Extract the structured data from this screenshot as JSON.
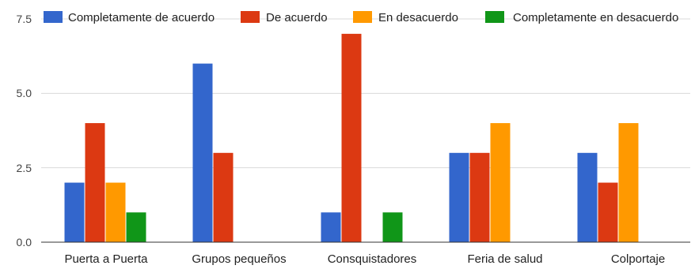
{
  "chart_data": {
    "type": "bar",
    "categories": [
      "Puerta a Puerta",
      "Grupos pequeños",
      "Consquistadores",
      "Feria de salud",
      "Colportaje"
    ],
    "series": [
      {
        "name": "Completamente de acuerdo",
        "color": "#3366cc",
        "values": [
          2,
          6,
          1,
          3,
          3
        ]
      },
      {
        "name": "De acuerdo",
        "color": "#dc3912",
        "values": [
          4,
          3,
          7,
          3,
          2
        ]
      },
      {
        "name": "En desacuerdo",
        "color": "#ff9900",
        "values": [
          2,
          0,
          0,
          4,
          4
        ]
      },
      {
        "name": "Completamente en desacuerdo",
        "color": "#109618",
        "values": [
          1,
          0,
          1,
          0,
          0
        ]
      }
    ],
    "yticks": [
      "0.0",
      "2.5",
      "5.0",
      "7.5"
    ],
    "ylim": [
      0,
      7.5
    ],
    "grid": true,
    "legend": "top"
  }
}
